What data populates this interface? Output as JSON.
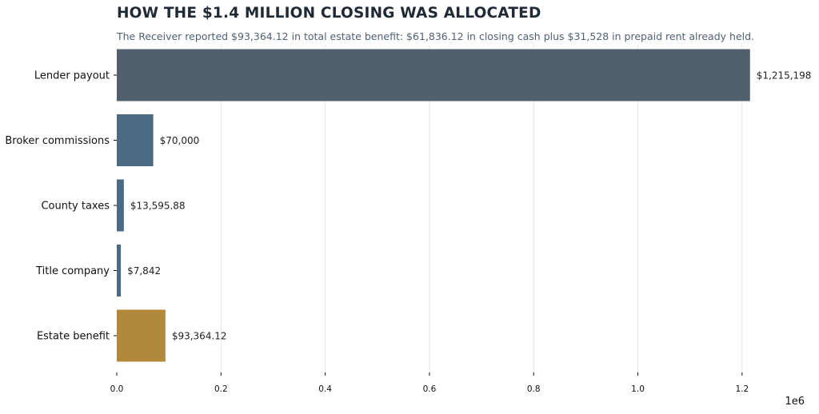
{
  "chart_data": {
    "type": "bar",
    "orientation": "horizontal",
    "title": "HOW THE $1.4 MILLION CLOSING WAS ALLOCATED",
    "subtitle": "The Receiver reported $93,364.12 in total estate benefit: $61,836.12 in closing cash plus $31,528 in prepaid rent already held.",
    "categories": [
      "Lender payout",
      "Broker commissions",
      "County taxes",
      "Title company",
      "Estate benefit"
    ],
    "values": [
      1215198,
      70000,
      13595.88,
      7842,
      93364.12
    ],
    "value_labels": [
      "$1,215,198",
      "$70,000",
      "$13,595.88",
      "$7,842",
      "$93,364.12"
    ],
    "bar_colors": [
      "#52606e",
      "#4a6b82",
      "#4a6b82",
      "#4a6b82",
      "#b2893a"
    ],
    "xlim": [
      0,
      1300000
    ],
    "xticks": [
      0,
      200000,
      400000,
      600000,
      800000,
      1000000,
      1200000
    ],
    "xtick_labels": [
      "0.0",
      "0.2",
      "0.4",
      "0.6",
      "0.8",
      "1.0",
      "1.2"
    ],
    "x_offset_label": "1e6",
    "grid": "vertical",
    "xlabel": "",
    "ylabel": ""
  }
}
